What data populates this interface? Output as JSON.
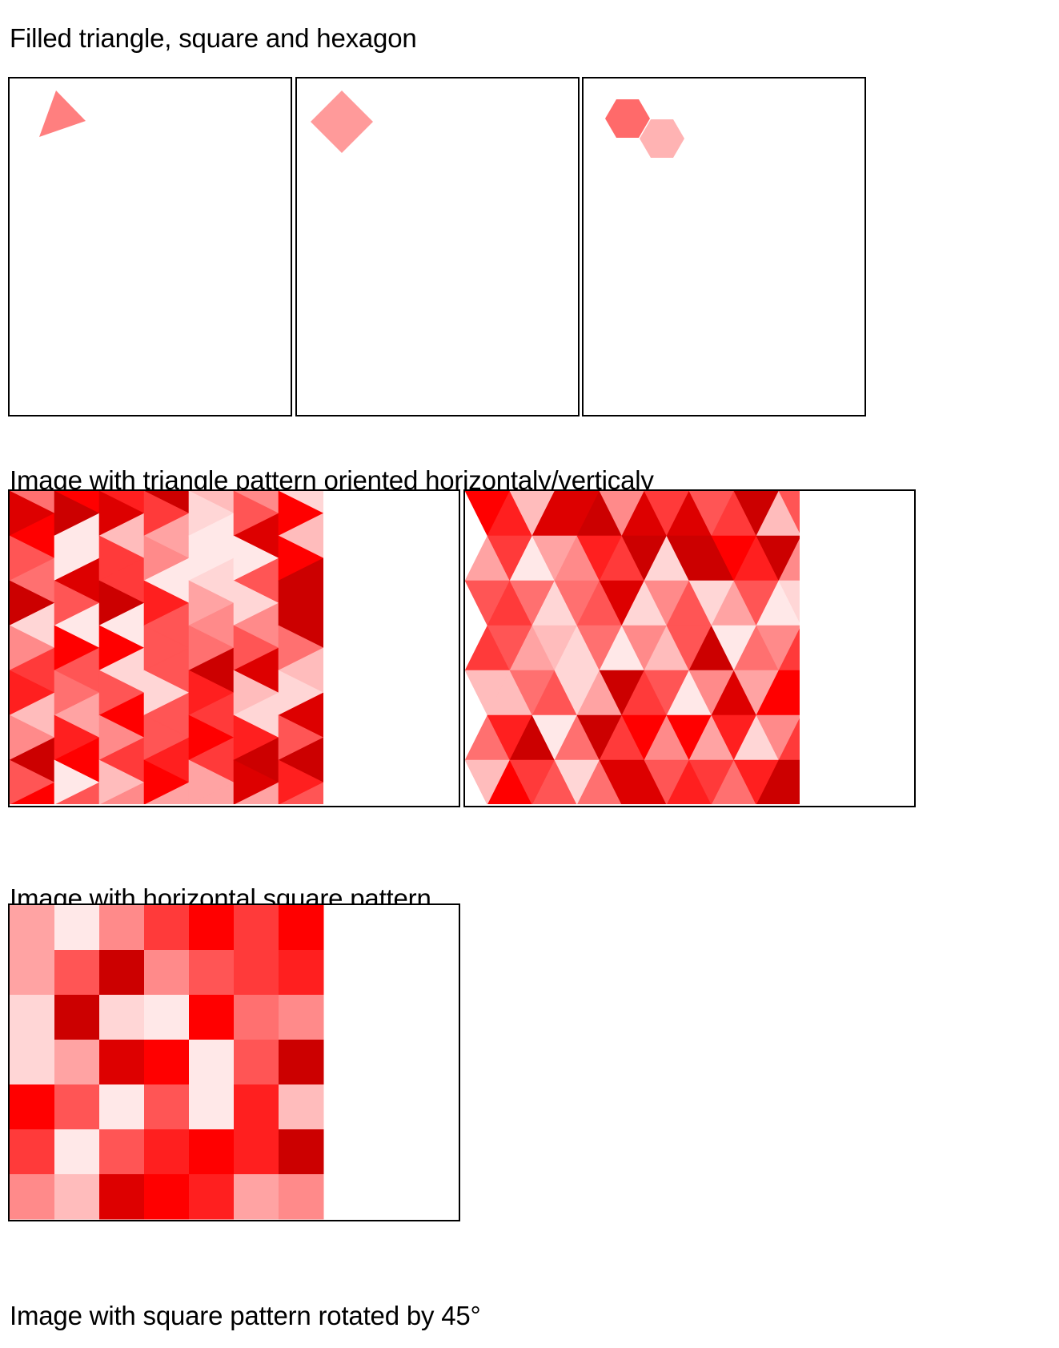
{
  "sections": [
    {
      "title": "Filled triangle, square and hexagon"
    },
    {
      "title": "Image with triangle pattern oriented horizontaly/verticaly"
    },
    {
      "title": "Image with horizontal square pattern"
    },
    {
      "title": "Image with square pattern rotated by 45°"
    }
  ],
  "colors": {
    "border": "#000000",
    "triangle_fill": "#ff7f7f",
    "square_fill": "#ff9a9a",
    "hexagon_fill_1": "#ff6a6a",
    "hexagon_fill_2": "#ffb3b3"
  },
  "palette": [
    "#cc0000",
    "#dd0000",
    "#ff0000",
    "#ff1f1f",
    "#ff3a3a",
    "#ff5555",
    "#ff7070",
    "#ff8a8a",
    "#ffa3a3",
    "#ffbcbc",
    "#ffd6d6",
    "#ffe8e8"
  ],
  "square_grid": [
    [
      8,
      11,
      7,
      4,
      2,
      4,
      2
    ],
    [
      8,
      5,
      0,
      7,
      5,
      4,
      3
    ],
    [
      10,
      0,
      10,
      11,
      2,
      6,
      7
    ],
    [
      10,
      8,
      1,
      2,
      11,
      5,
      0
    ],
    [
      2,
      5,
      11,
      5,
      11,
      3,
      9
    ],
    [
      4,
      11,
      5,
      3,
      2,
      3,
      0
    ],
    [
      7,
      9,
      1,
      2,
      3,
      8,
      7
    ]
  ]
}
